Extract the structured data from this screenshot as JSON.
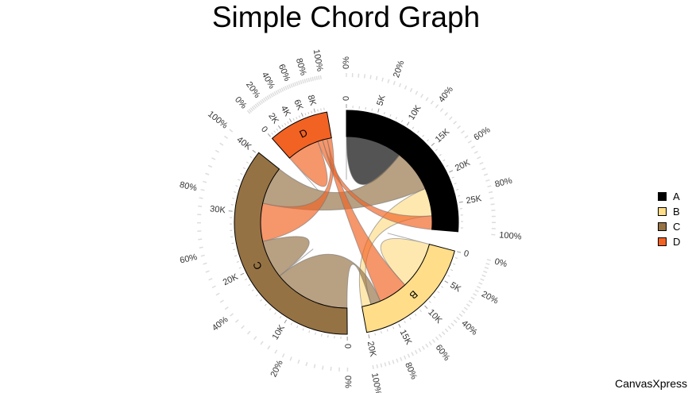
{
  "chart_data": {
    "type": "chord",
    "title": "Simple Chord Graph",
    "groups": [
      "A",
      "B",
      "C",
      "D"
    ],
    "colors": [
      "#000000",
      "#FFDD89",
      "#957244",
      "#F26223"
    ],
    "matrix": [
      [
        11975,
        5871,
        8916,
        2868
      ],
      [
        1951,
        10048,
        2060,
        6171
      ],
      [
        8010,
        16145,
        8090,
        8045
      ],
      [
        1013,
        990,
        940,
        6907
      ]
    ],
    "percent_ticks": [
      "0%",
      "20%",
      "40%",
      "60%",
      "80%",
      "100%"
    ],
    "legend_position": "right"
  },
  "brand": "CanvasXpress"
}
